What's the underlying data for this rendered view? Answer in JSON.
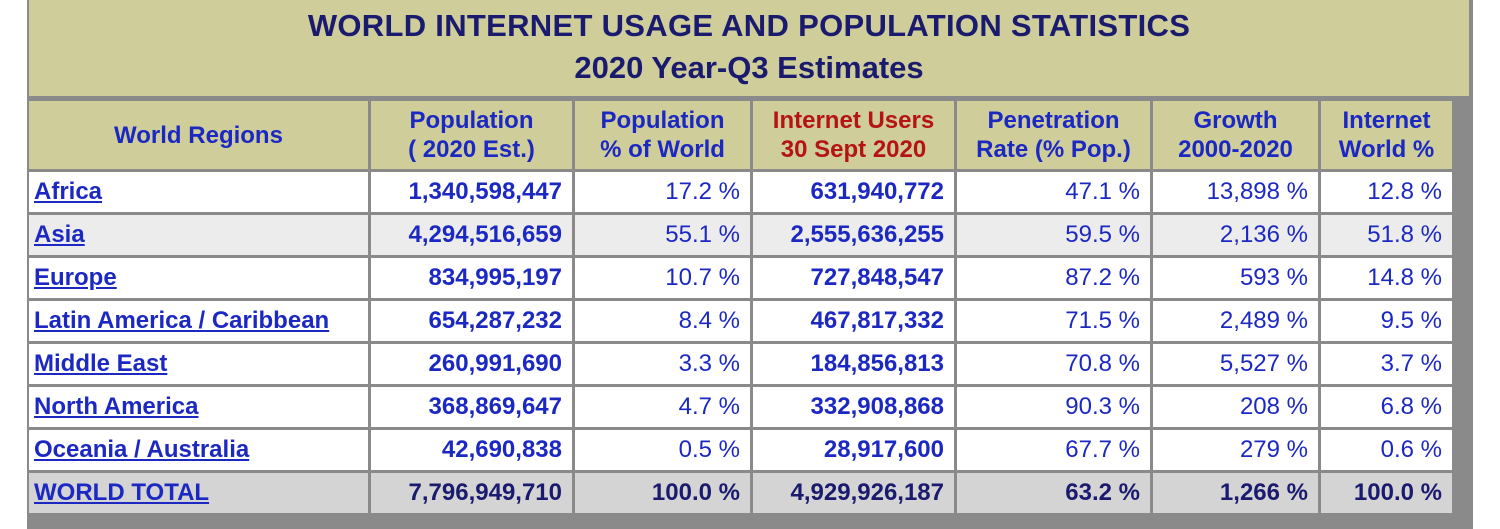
{
  "title": "WORLD INTERNET USAGE AND POPULATION STATISTICS",
  "subtitle": "2020 Year-Q3 Estimates",
  "headers": [
    {
      "line1": "World Regions",
      "line2": ""
    },
    {
      "line1": "Population",
      "line2": "( 2020 Est.)"
    },
    {
      "line1": "Population",
      "line2": "% of World"
    },
    {
      "line1": "Internet Users",
      "line2": "30 Sept 2020"
    },
    {
      "line1": "Penetration",
      "line2": "Rate (% Pop.)"
    },
    {
      "line1": "Growth",
      "line2": "2000-2020"
    },
    {
      "line1": "Internet",
      "line2": "World %"
    }
  ],
  "rows": [
    {
      "region": "Africa",
      "population": "1,340,598,447",
      "pop_pct": "17.2 %",
      "users": "631,940,772",
      "penetration": "47.1 %",
      "growth": "13,898 %",
      "world_pct": "12.8 %"
    },
    {
      "region": "Asia",
      "population": "4,294,516,659",
      "pop_pct": "55.1 %",
      "users": "2,555,636,255",
      "penetration": "59.5 %",
      "growth": "2,136 %",
      "world_pct": "51.8 %"
    },
    {
      "region": "Europe",
      "population": "834,995,197",
      "pop_pct": "10.7 %",
      "users": "727,848,547",
      "penetration": "87.2 %",
      "growth": "593 %",
      "world_pct": "14.8 %"
    },
    {
      "region": "Latin America / Caribbean",
      "population": "654,287,232",
      "pop_pct": "8.4 %",
      "users": "467,817,332",
      "penetration": "71.5 %",
      "growth": "2,489 %",
      "world_pct": "9.5 %"
    },
    {
      "region": "Middle East",
      "population": "260,991,690",
      "pop_pct": "3.3 %",
      "users": "184,856,813",
      "penetration": "70.8 %",
      "growth": "5,527 %",
      "world_pct": "3.7 %"
    },
    {
      "region": "North America",
      "population": "368,869,647",
      "pop_pct": "4.7 %",
      "users": "332,908,868",
      "penetration": "90.3 %",
      "growth": "208 %",
      "world_pct": "6.8 %"
    },
    {
      "region": "Oceania / Australia",
      "population": "42,690,838",
      "pop_pct": "0.5 %",
      "users": "28,917,600",
      "penetration": "67.7 %",
      "growth": "279 %",
      "world_pct": "0.6 %"
    }
  ],
  "total": {
    "region": "WORLD TOTAL",
    "population": "7,796,949,710",
    "pop_pct": "100.0 %",
    "users": "4,929,926,187",
    "penetration": "63.2 %",
    "growth": "1,266 %",
    "world_pct": "100.0 %"
  }
}
